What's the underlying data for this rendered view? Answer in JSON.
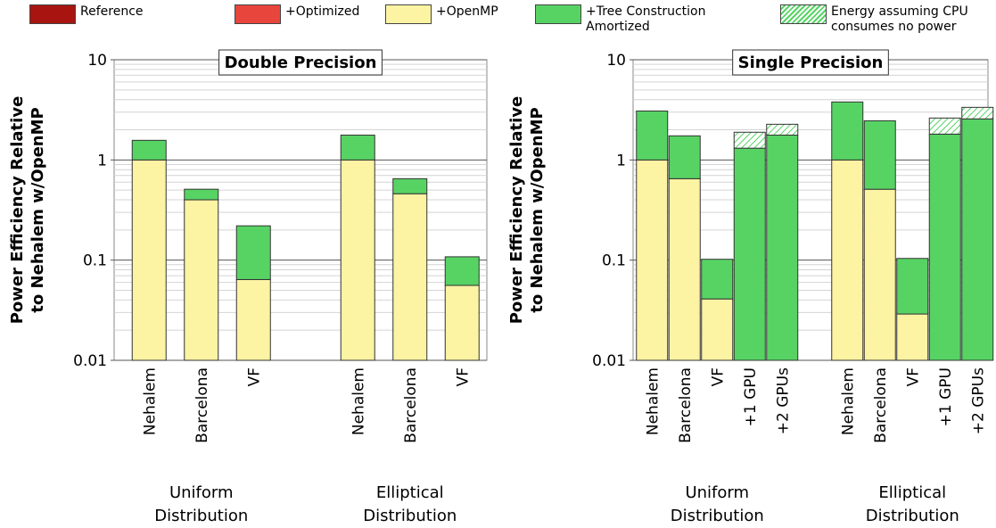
{
  "chart_data": [
    {
      "type": "bar",
      "stacked": true,
      "log_scale": true,
      "grid": true,
      "minor_grid": true,
      "title": "Double Precision",
      "ylabel": [
        "Power Efficiency Relative",
        "to Nehalem w/OpenMP"
      ],
      "categories": [
        "Nehalem",
        "Barcelona",
        "VF",
        null,
        "Nehalem",
        "Barcelona",
        "VF"
      ],
      "groups": [
        [
          "Uniform",
          "Distribution"
        ],
        [
          "Elliptical",
          "Distribution"
        ]
      ],
      "series": [
        {
          "name": "Reference",
          "color": "#a8140f",
          "values": [
            null,
            null,
            null,
            null,
            null,
            null,
            null
          ]
        },
        {
          "name": "+Optimized",
          "color": "#e8453c",
          "values": [
            null,
            null,
            null,
            null,
            null,
            null,
            null
          ]
        },
        {
          "name": "+OpenMP",
          "color": "#fcf3a3",
          "values": [
            1,
            0.4,
            0.064,
            null,
            1,
            0.46,
            0.056
          ]
        },
        {
          "name": "+Tree Construction Amortized",
          "color": "#57d364",
          "values": [
            0.57,
            0.11,
            0.156,
            null,
            0.77,
            0.19,
            0.052
          ]
        },
        {
          "name": "Energy assuming CPU consumes no power",
          "color": "#57d364",
          "hatch": true,
          "values": [
            null,
            null,
            null,
            null,
            null,
            null,
            null
          ]
        }
      ],
      "ylim": [
        0.01,
        10
      ],
      "yticks": [
        0.01,
        0.1,
        1,
        10
      ]
    },
    {
      "type": "bar",
      "stacked": true,
      "log_scale": true,
      "grid": true,
      "minor_grid": true,
      "title": "Single Precision",
      "ylabel": [
        "Power Efficiency Relative",
        "to Nehalem w/OpenMP"
      ],
      "categories": [
        "Nehalem",
        "Barcelona",
        "VF",
        "+1 GPU",
        "+2 GPUs",
        null,
        "Nehalem",
        "Barcelona",
        "VF",
        "+1 GPU",
        "+2 GPUs"
      ],
      "groups": [
        [
          "Uniform",
          "Distribution"
        ],
        [
          "Elliptical",
          "Distribution"
        ]
      ],
      "series": [
        {
          "values": [
            null,
            null,
            null,
            null,
            null,
            null,
            null,
            null,
            null,
            null,
            null
          ]
        },
        {
          "values": [
            null,
            null,
            null,
            null,
            null,
            null,
            null,
            null,
            null,
            null,
            null
          ]
        },
        {
          "values": [
            1,
            0.65,
            0.041,
            null,
            null,
            null,
            1,
            0.51,
            0.029,
            null,
            null
          ]
        },
        {
          "values": [
            2.08,
            1.09,
            0.061,
            1.31,
            1.77,
            null,
            2.79,
            1.95,
            0.075,
            1.81,
            2.57
          ]
        },
        {
          "values": [
            null,
            null,
            null,
            0.58,
            0.5,
            null,
            null,
            null,
            null,
            0.81,
            0.78
          ]
        }
      ],
      "ylim": [
        0.01,
        10
      ],
      "yticks": [
        0.01,
        0.1,
        1,
        10
      ]
    }
  ]
}
